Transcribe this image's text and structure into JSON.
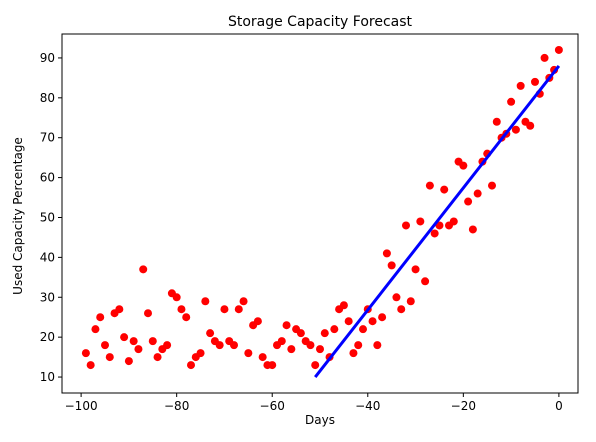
{
  "chart_data": {
    "type": "scatter",
    "title": "Storage Capacity Forecast",
    "xlabel": "Days",
    "ylabel": "Used Capacity Percentage",
    "xlim": [
      -104,
      4
    ],
    "ylim": [
      6,
      96
    ],
    "xticks": [
      -100,
      -80,
      -60,
      -40,
      -20,
      0
    ],
    "xtick_labels": [
      "−100",
      "−80",
      "−60",
      "−40",
      "−20",
      "0"
    ],
    "yticks": [
      10,
      20,
      30,
      40,
      50,
      60,
      70,
      80,
      90
    ],
    "ytick_labels": [
      "10",
      "20",
      "30",
      "40",
      "50",
      "60",
      "70",
      "80",
      "90"
    ],
    "grid": false,
    "legend": false,
    "series": [
      {
        "type": "scatter",
        "color": "#ff0000",
        "points": [
          [
            -99,
            16
          ],
          [
            -98,
            13
          ],
          [
            -97,
            22
          ],
          [
            -96,
            25
          ],
          [
            -95,
            18
          ],
          [
            -94,
            15
          ],
          [
            -93,
            26
          ],
          [
            -92,
            27
          ],
          [
            -91,
            20
          ],
          [
            -90,
            14
          ],
          [
            -89,
            19
          ],
          [
            -88,
            17
          ],
          [
            -87,
            37
          ],
          [
            -86,
            26
          ],
          [
            -85,
            19
          ],
          [
            -84,
            15
          ],
          [
            -83,
            17
          ],
          [
            -82,
            18
          ],
          [
            -81,
            31
          ],
          [
            -80,
            30
          ],
          [
            -79,
            27
          ],
          [
            -78,
            25
          ],
          [
            -77,
            13
          ],
          [
            -76,
            15
          ],
          [
            -75,
            16
          ],
          [
            -74,
            29
          ],
          [
            -73,
            21
          ],
          [
            -72,
            19
          ],
          [
            -71,
            18
          ],
          [
            -70,
            27
          ],
          [
            -69,
            19
          ],
          [
            -68,
            18
          ],
          [
            -67,
            27
          ],
          [
            -66,
            29
          ],
          [
            -65,
            16
          ],
          [
            -64,
            23
          ],
          [
            -63,
            24
          ],
          [
            -62,
            15
          ],
          [
            -61,
            13
          ],
          [
            -60,
            13
          ],
          [
            -59,
            18
          ],
          [
            -58,
            19
          ],
          [
            -57,
            23
          ],
          [
            -56,
            17
          ],
          [
            -55,
            22
          ],
          [
            -54,
            21
          ],
          [
            -53,
            19
          ],
          [
            -52,
            18
          ],
          [
            -51,
            13
          ],
          [
            -50,
            17
          ],
          [
            -49,
            21
          ],
          [
            -48,
            15
          ],
          [
            -47,
            22
          ],
          [
            -46,
            27
          ],
          [
            -45,
            28
          ],
          [
            -44,
            24
          ],
          [
            -43,
            16
          ],
          [
            -42,
            18
          ],
          [
            -41,
            22
          ],
          [
            -40,
            27
          ],
          [
            -39,
            24
          ],
          [
            -38,
            18
          ],
          [
            -37,
            25
          ],
          [
            -36,
            41
          ],
          [
            -35,
            38
          ],
          [
            -34,
            30
          ],
          [
            -33,
            27
          ],
          [
            -32,
            48
          ],
          [
            -31,
            29
          ],
          [
            -30,
            37
          ],
          [
            -29,
            49
          ],
          [
            -28,
            34
          ],
          [
            -27,
            58
          ],
          [
            -26,
            46
          ],
          [
            -25,
            48
          ],
          [
            -24,
            57
          ],
          [
            -23,
            48
          ],
          [
            -22,
            49
          ],
          [
            -21,
            64
          ],
          [
            -20,
            63
          ],
          [
            -19,
            54
          ],
          [
            -18,
            47
          ],
          [
            -17,
            56
          ],
          [
            -16,
            64
          ],
          [
            -15,
            66
          ],
          [
            -14,
            58
          ],
          [
            -13,
            74
          ],
          [
            -12,
            70
          ],
          [
            -11,
            71
          ],
          [
            -10,
            79
          ],
          [
            -9,
            72
          ],
          [
            -8,
            83
          ],
          [
            -7,
            74
          ],
          [
            -6,
            73
          ],
          [
            -5,
            84
          ],
          [
            -4,
            81
          ],
          [
            -3,
            90
          ],
          [
            -2,
            85
          ],
          [
            -1,
            87
          ],
          [
            0,
            92
          ]
        ]
      },
      {
        "type": "line",
        "color": "#0000ff",
        "points": [
          [
            -51,
            10
          ],
          [
            0,
            88
          ]
        ]
      }
    ]
  }
}
